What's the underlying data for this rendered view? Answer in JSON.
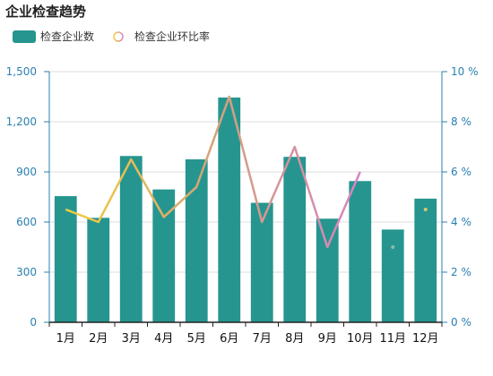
{
  "chart_data": {
    "type": "bar",
    "title": "企业检查趋势",
    "categories": [
      "1月",
      "2月",
      "3月",
      "4月",
      "5月",
      "6月",
      "7月",
      "8月",
      "9月",
      "10月",
      "11月",
      "12月"
    ],
    "series": [
      {
        "name": "检查企业数",
        "type": "bar",
        "axis": "left",
        "color": "#26958f",
        "values": [
          755,
          625,
          995,
          795,
          975,
          1345,
          715,
          990,
          620,
          845,
          555,
          740
        ]
      },
      {
        "name": "检查企业环比率",
        "type": "line",
        "axis": "right",
        "unit": "%",
        "colors": [
          "#f2cf3e",
          "#d4a37a",
          "#d784c2"
        ],
        "values": [
          4.5,
          4.0,
          6.5,
          4.2,
          5.4,
          9.0,
          4.0,
          7.0,
          3.0,
          6.0,
          3.0,
          4.5
        ]
      }
    ],
    "y_left": {
      "min": 0,
      "max": 1500,
      "ticks": [
        "0",
        "300",
        "600",
        "900",
        "1,200",
        "1,500"
      ]
    },
    "y_right": {
      "min": 0,
      "max": 10,
      "ticks": [
        "0 %",
        "2 %",
        "4 %",
        "6 %",
        "8 %",
        "10 %"
      ]
    },
    "grid": true,
    "legend_position": "top-left",
    "colors": {
      "axis": "#2a7fb0",
      "grid": "#dddddd"
    }
  }
}
